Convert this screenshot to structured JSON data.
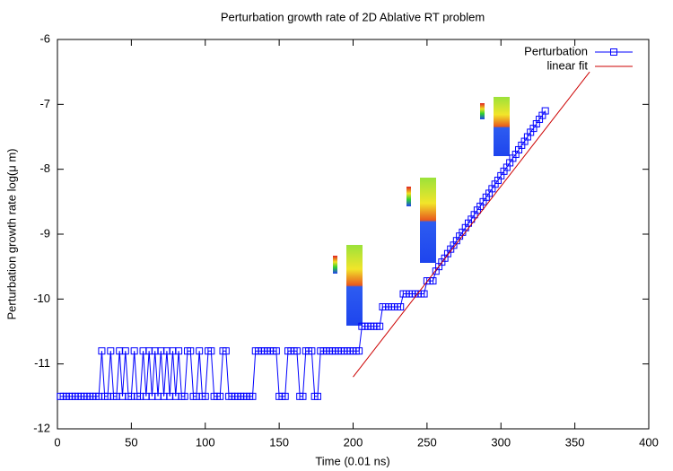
{
  "chart_data": {
    "type": "line",
    "title": "Perturbation growth rate of 2D Ablative RT problem",
    "xlabel": "Time (0.01 ns)",
    "ylabel": "Perturbation growth rate log(μ m)",
    "xlim": [
      0,
      400
    ],
    "xticks": [
      0,
      50,
      100,
      150,
      200,
      250,
      300,
      350,
      400
    ],
    "ylim": [
      -12,
      -6
    ],
    "yticks": [
      -12,
      -11,
      -10,
      -9,
      -8,
      -7,
      -6
    ],
    "legend": "top-right",
    "series": [
      {
        "name": "Perturbation",
        "color": "#0000ff",
        "marker": "square",
        "x": [
          2,
          4,
          6,
          8,
          10,
          12,
          14,
          16,
          18,
          20,
          22,
          24,
          26,
          28,
          30,
          32,
          34,
          36,
          38,
          40,
          42,
          44,
          46,
          48,
          50,
          52,
          54,
          56,
          58,
          60,
          62,
          64,
          66,
          68,
          70,
          72,
          74,
          76,
          78,
          80,
          82,
          84,
          86,
          88,
          90,
          92,
          94,
          96,
          98,
          100,
          102,
          104,
          106,
          108,
          110,
          112,
          114,
          116,
          118,
          120,
          122,
          124,
          126,
          128,
          130,
          132,
          134,
          136,
          138,
          140,
          142,
          144,
          146,
          148,
          150,
          152,
          154,
          156,
          158,
          160,
          162,
          164,
          166,
          168,
          170,
          172,
          174,
          176,
          178,
          180,
          182,
          184,
          186,
          188,
          190,
          192,
          194,
          196,
          198,
          200,
          202,
          204,
          206,
          208,
          210,
          212,
          214,
          216,
          218,
          220,
          222,
          224,
          226,
          228,
          230,
          232,
          234,
          236,
          238,
          240,
          242,
          244,
          246,
          248,
          250,
          252,
          254,
          256,
          258,
          260,
          262,
          264,
          266,
          268,
          270,
          272,
          274,
          276,
          278,
          280,
          282,
          284,
          286,
          288,
          290,
          292,
          294,
          296,
          298,
          300,
          302,
          304,
          306,
          308,
          310,
          312,
          314,
          316,
          318,
          320,
          322,
          324,
          326,
          328,
          330
        ],
        "values": [
          -11.5,
          -11.5,
          -11.5,
          -11.5,
          -11.5,
          -11.5,
          -11.5,
          -11.5,
          -11.5,
          -11.5,
          -11.5,
          -11.5,
          -11.5,
          -11.5,
          -10.8,
          -11.5,
          -11.5,
          -10.8,
          -11.5,
          -11.5,
          -10.8,
          -11.5,
          -10.8,
          -11.5,
          -11.5,
          -10.8,
          -11.5,
          -11.5,
          -10.8,
          -11.5,
          -10.8,
          -11.5,
          -10.8,
          -11.5,
          -10.8,
          -11.5,
          -10.8,
          -11.5,
          -10.8,
          -11.5,
          -10.8,
          -11.5,
          -11.5,
          -10.8,
          -10.8,
          -11.5,
          -11.5,
          -10.8,
          -11.5,
          -11.5,
          -10.8,
          -10.8,
          -11.5,
          -11.5,
          -11.5,
          -10.8,
          -10.8,
          -11.5,
          -11.5,
          -11.5,
          -11.5,
          -11.5,
          -11.5,
          -11.5,
          -11.5,
          -11.5,
          -10.8,
          -10.8,
          -10.8,
          -10.8,
          -10.8,
          -10.8,
          -10.8,
          -10.8,
          -11.5,
          -11.5,
          -11.5,
          -10.8,
          -10.8,
          -10.8,
          -10.8,
          -11.5,
          -11.5,
          -10.8,
          -10.8,
          -10.8,
          -11.5,
          -11.5,
          -10.8,
          -10.8,
          -10.8,
          -10.8,
          -10.8,
          -10.8,
          -10.8,
          -10.8,
          -10.8,
          -10.8,
          -10.8,
          -10.8,
          -10.8,
          -10.8,
          -10.42,
          -10.42,
          -10.42,
          -10.42,
          -10.42,
          -10.42,
          -10.42,
          -10.12,
          -10.12,
          -10.12,
          -10.12,
          -10.12,
          -10.12,
          -10.12,
          -9.92,
          -9.92,
          -9.92,
          -9.92,
          -9.92,
          -9.92,
          -9.92,
          -9.92,
          -9.72,
          -9.72,
          -9.72,
          -9.57,
          -9.5,
          -9.43,
          -9.37,
          -9.3,
          -9.23,
          -9.17,
          -9.1,
          -9.03,
          -8.97,
          -8.9,
          -8.83,
          -8.77,
          -8.7,
          -8.63,
          -8.57,
          -8.5,
          -8.43,
          -8.37,
          -8.3,
          -8.23,
          -8.17,
          -8.1,
          -8.03,
          -7.97,
          -7.9,
          -7.83,
          -7.77,
          -7.7,
          -7.63,
          -7.57,
          -7.5,
          -7.43,
          -7.37,
          -7.3,
          -7.23,
          -7.17,
          -7.1
        ]
      },
      {
        "name": "linear fit",
        "color": "#cc0000",
        "x": [
          200,
          360
        ],
        "values": [
          -11.2,
          -6.5
        ]
      }
    ]
  }
}
